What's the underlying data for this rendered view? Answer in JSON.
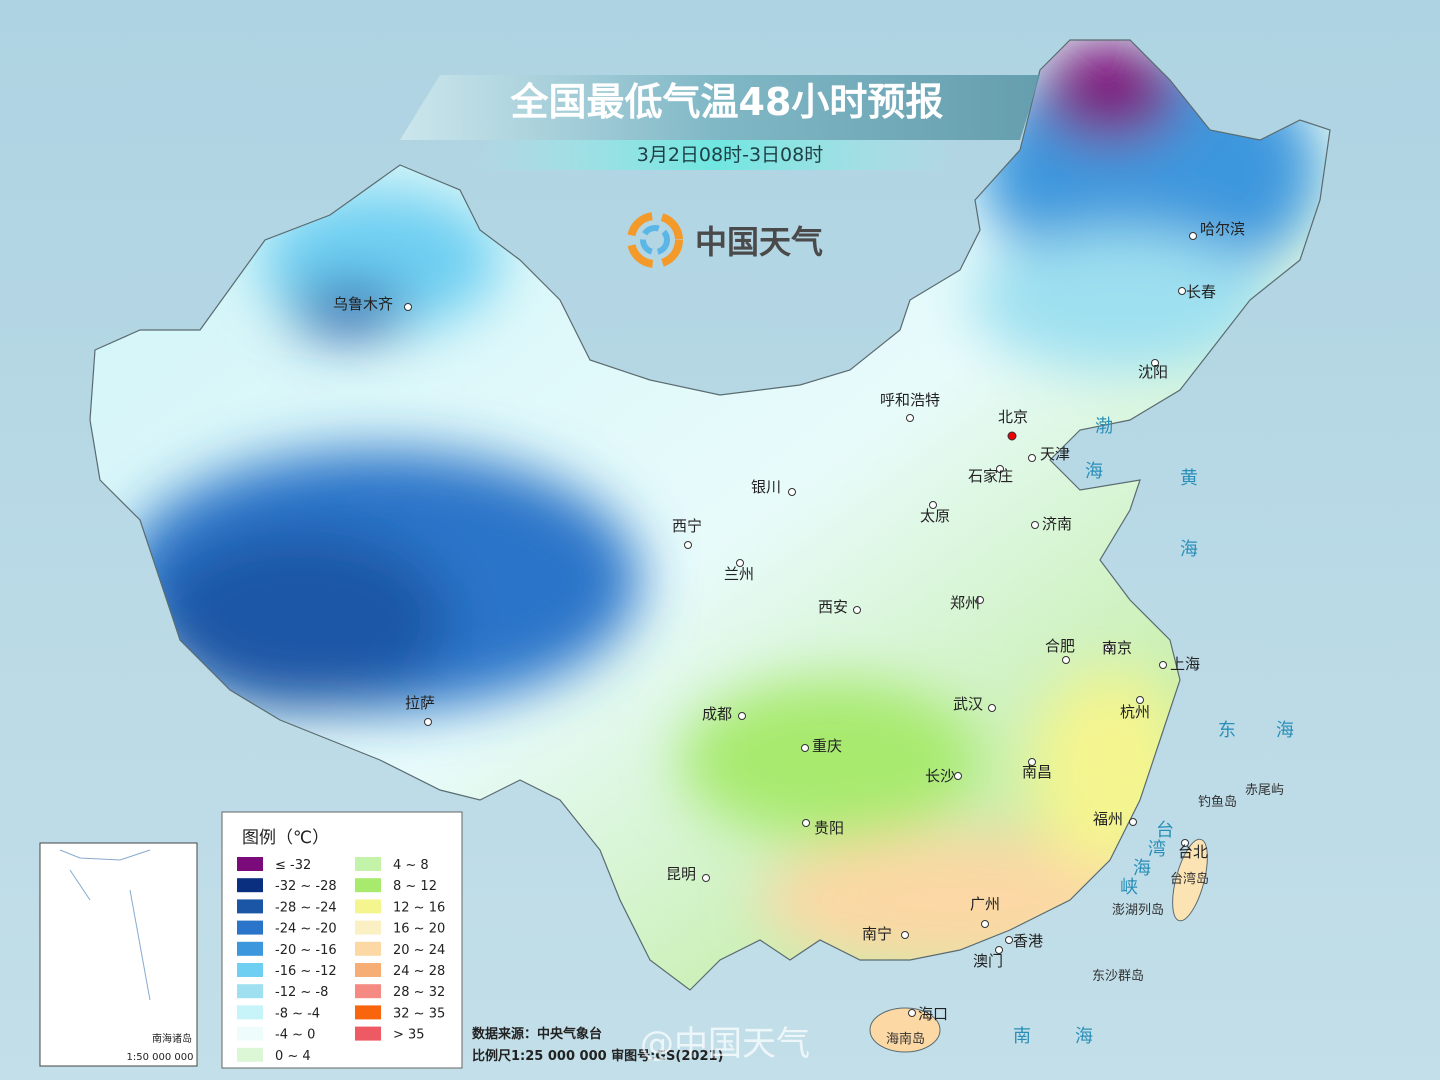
{
  "header": {
    "title": "全国最低气温48小时预报",
    "subtitle": "3月2日08时-3日08时",
    "brand": "中国天气"
  },
  "cities": [
    "乌鲁木齐",
    "拉萨",
    "西宁",
    "兰州",
    "银川",
    "成都",
    "重庆",
    "贵阳",
    "昆明",
    "南宁",
    "西安",
    "呼和浩特",
    "北京",
    "天津",
    "石家庄",
    "太原",
    "济南",
    "郑州",
    "合肥",
    "南京",
    "上海",
    "杭州",
    "武汉",
    "长沙",
    "南昌",
    "福州",
    "台北",
    "广州",
    "香港",
    "澳门",
    "海口",
    "哈尔滨",
    "长春",
    "沈阳"
  ],
  "seas": [
    "渤",
    "海",
    "黄",
    "海",
    "东",
    "海",
    "南",
    "海",
    "台",
    "湾",
    "海",
    "峡"
  ],
  "islands": [
    "钓鱼岛",
    "赤尾屿",
    "台湾岛",
    "澎湖列岛",
    "东沙群岛",
    "海南岛"
  ],
  "legend": {
    "title": "图例（℃）",
    "items": [
      {
        "label": "≤ -32",
        "color": "#7b0a7a"
      },
      {
        "label": "-32 ~ -28",
        "color": "#0a2f7f"
      },
      {
        "label": "-28 ~ -24",
        "color": "#1b56a6"
      },
      {
        "label": "-24 ~ -20",
        "color": "#2a74c9"
      },
      {
        "label": "-20 ~ -16",
        "color": "#3c97dd"
      },
      {
        "label": "-16 ~ -12",
        "color": "#6ecff2"
      },
      {
        "label": "-12 ~ -8",
        "color": "#9ee0f0"
      },
      {
        "label": "-8 ~ -4",
        "color": "#c6f4f9"
      },
      {
        "label": "-4 ~ 0",
        "color": "#eefcfc"
      },
      {
        "label": "0 ~ 4",
        "color": "#dcf7d6"
      },
      {
        "label": "4 ~ 8",
        "color": "#c3f2a9"
      },
      {
        "label": "8 ~ 12",
        "color": "#a7ea6e"
      },
      {
        "label": "12 ~ 16",
        "color": "#f4f58f"
      },
      {
        "label": "16 ~ 20",
        "color": "#fbf0c4"
      },
      {
        "label": "20 ~ 24",
        "color": "#fbd8a4"
      },
      {
        "label": "24 ~ 28",
        "color": "#f7ae74"
      },
      {
        "label": "28 ~ 32",
        "color": "#f48a82"
      },
      {
        "label": "32 ~ 35",
        "color": "#f8650c"
      },
      {
        "label": "> 35",
        "color": "#ee5a64"
      }
    ]
  },
  "footer": {
    "source": "数据来源：中央气象台",
    "scale": "比例尺1:25 000 000  审图号:GS(2021)",
    "watermark": "@中国天气"
  },
  "inset": {
    "label": "南海诸岛",
    "scale": "1:50 000 000"
  }
}
